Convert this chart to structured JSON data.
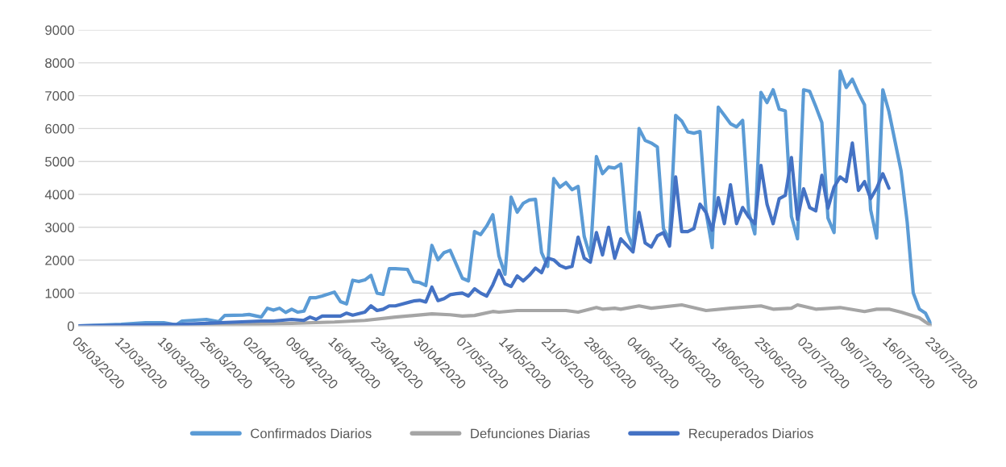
{
  "chart_data": {
    "type": "line",
    "xlim": [
      "2020-03-05",
      "2020-07-23"
    ],
    "xticks": [
      {
        "value": "2020-03-05",
        "label": "05/03/2020"
      },
      {
        "value": "2020-03-12",
        "label": "12/03/2020"
      },
      {
        "value": "2020-03-19",
        "label": "19/03/2020"
      },
      {
        "value": "2020-03-26",
        "label": "26/03/2020"
      },
      {
        "value": "2020-04-02",
        "label": "02/04/2020"
      },
      {
        "value": "2020-04-09",
        "label": "09/04/2020"
      },
      {
        "value": "2020-04-16",
        "label": "16/04/2020"
      },
      {
        "value": "2020-04-23",
        "label": "23/04/2020"
      },
      {
        "value": "2020-04-30",
        "label": "30/04/2020"
      },
      {
        "value": "2020-05-07",
        "label": "07/05/2020"
      },
      {
        "value": "2020-05-14",
        "label": "14/05/2020"
      },
      {
        "value": "2020-05-21",
        "label": "21/05/2020"
      },
      {
        "value": "2020-05-28",
        "label": "28/05/2020"
      },
      {
        "value": "2020-06-04",
        "label": "04/06/2020"
      },
      {
        "value": "2020-06-11",
        "label": "11/06/2020"
      },
      {
        "value": "2020-06-18",
        "label": "18/06/2020"
      },
      {
        "value": "2020-06-25",
        "label": "25/06/2020"
      },
      {
        "value": "2020-07-02",
        "label": "02/07/2020"
      },
      {
        "value": "2020-07-09",
        "label": "09/07/2020"
      },
      {
        "value": "2020-07-16",
        "label": "16/07/2020"
      },
      {
        "value": "2020-07-23",
        "label": "23/07/2020"
      }
    ],
    "ylim": [
      0,
      9000
    ],
    "yticks": [
      0,
      1000,
      2000,
      3000,
      4000,
      5000,
      6000,
      7000,
      8000,
      9000
    ],
    "grid": "y",
    "legend": "bottom",
    "marker": "none",
    "line_style": "solid",
    "series": [
      {
        "name": "Confirmados Diarios",
        "color": "#5b9bd5",
        "x": [
          "2020-03-05",
          "2020-03-12",
          "2020-03-16",
          "2020-03-19",
          "2020-03-21",
          "2020-03-22",
          "2020-03-26",
          "2020-03-28",
          "2020-03-29",
          "2020-04-01",
          "2020-04-02",
          "2020-04-04",
          "2020-04-05",
          "2020-04-06",
          "2020-04-07",
          "2020-04-08",
          "2020-04-09",
          "2020-04-10",
          "2020-04-11",
          "2020-04-12",
          "2020-04-13",
          "2020-04-14",
          "2020-04-16",
          "2020-04-17",
          "2020-04-18",
          "2020-04-19",
          "2020-04-20",
          "2020-04-21",
          "2020-04-22",
          "2020-04-23",
          "2020-04-24",
          "2020-04-25",
          "2020-04-26",
          "2020-04-28",
          "2020-04-29",
          "2020-04-30",
          "2020-05-01",
          "2020-05-02",
          "2020-05-03",
          "2020-05-04",
          "2020-05-05",
          "2020-05-07",
          "2020-05-08",
          "2020-05-09",
          "2020-05-10",
          "2020-05-11",
          "2020-05-12",
          "2020-05-13",
          "2020-05-14",
          "2020-05-15",
          "2020-05-16",
          "2020-05-17",
          "2020-05-18",
          "2020-05-19",
          "2020-05-20",
          "2020-05-21",
          "2020-05-22",
          "2020-05-23",
          "2020-05-24",
          "2020-05-25",
          "2020-05-26",
          "2020-05-27",
          "2020-05-28",
          "2020-05-29",
          "2020-05-30",
          "2020-05-31",
          "2020-06-01",
          "2020-06-02",
          "2020-06-03",
          "2020-06-04",
          "2020-06-05",
          "2020-06-06",
          "2020-06-07",
          "2020-06-08",
          "2020-06-09",
          "2020-06-10",
          "2020-06-11",
          "2020-06-12",
          "2020-06-13",
          "2020-06-14",
          "2020-06-15",
          "2020-06-16",
          "2020-06-17",
          "2020-06-18",
          "2020-06-19",
          "2020-06-20",
          "2020-06-21",
          "2020-06-22",
          "2020-06-23",
          "2020-06-24",
          "2020-06-25",
          "2020-06-26",
          "2020-06-27",
          "2020-06-28",
          "2020-06-29",
          "2020-06-30",
          "2020-07-01",
          "2020-07-02",
          "2020-07-03",
          "2020-07-04",
          "2020-07-05",
          "2020-07-06",
          "2020-07-07",
          "2020-07-08",
          "2020-07-09",
          "2020-07-10",
          "2020-07-11",
          "2020-07-12",
          "2020-07-13",
          "2020-07-14",
          "2020-07-15",
          "2020-07-16",
          "2020-07-18",
          "2020-07-19",
          "2020-07-20",
          "2020-07-21",
          "2020-07-22",
          "2020-07-23"
        ],
        "values": [
          0,
          50,
          100,
          100,
          30,
          150,
          200,
          130,
          320,
          330,
          350,
          270,
          540,
          480,
          540,
          410,
          510,
          420,
          450,
          860,
          860,
          910,
          1030,
          740,
          670,
          1390,
          1350,
          1400,
          1540,
          1000,
          960,
          1740,
          1740,
          1720,
          1350,
          1320,
          1230,
          2450,
          2010,
          2230,
          2300,
          1450,
          1370,
          2870,
          2780,
          3040,
          3380,
          2130,
          1570,
          3920,
          3460,
          3730,
          3830,
          3850,
          2230,
          1810,
          4480,
          4220,
          4360,
          4140,
          4240,
          2720,
          2100,
          5150,
          4630,
          4830,
          4800,
          4920,
          2870,
          2380,
          6000,
          5640,
          5560,
          5440,
          2960,
          2620,
          6400,
          6230,
          5900,
          5860,
          5910,
          3450,
          2380,
          6650,
          6400,
          6150,
          6050,
          6250,
          3450,
          2800,
          7100,
          6790,
          7180,
          6590,
          6540,
          3330,
          2650,
          7180,
          7130,
          6670,
          6180,
          3280,
          2840,
          7750,
          7250,
          7500,
          7080,
          6720,
          3530,
          2670,
          7180,
          6520,
          4710,
          3160,
          1000,
          510,
          390,
          20
        ]
      },
      {
        "name": "Defunciones Diarias",
        "color": "#a5a5a5",
        "x": [
          "2020-03-05",
          "2020-03-26",
          "2020-04-02",
          "2020-04-09",
          "2020-04-16",
          "2020-04-21",
          "2020-04-26",
          "2020-05-02",
          "2020-05-05",
          "2020-05-07",
          "2020-05-09",
          "2020-05-12",
          "2020-05-13",
          "2020-05-16",
          "2020-05-20",
          "2020-05-24",
          "2020-05-26",
          "2020-05-29",
          "2020-05-30",
          "2020-06-01",
          "2020-06-02",
          "2020-06-05",
          "2020-06-07",
          "2020-06-12",
          "2020-06-16",
          "2020-06-20",
          "2020-06-25",
          "2020-06-27",
          "2020-06-30",
          "2020-07-01",
          "2020-07-04",
          "2020-07-08",
          "2020-07-12",
          "2020-07-14",
          "2020-07-16",
          "2020-07-18",
          "2020-07-21",
          "2020-07-22",
          "2020-07-23"
        ],
        "values": [
          0,
          10,
          50,
          80,
          120,
          170,
          270,
          370,
          340,
          300,
          320,
          440,
          420,
          470,
          470,
          470,
          420,
          560,
          510,
          540,
          510,
          610,
          540,
          640,
          470,
          540,
          610,
          510,
          540,
          640,
          510,
          560,
          440,
          510,
          510,
          420,
          250,
          120,
          0
        ]
      },
      {
        "name": "Recuperados Diarios",
        "color": "#4472c4",
        "x": [
          "2020-03-05",
          "2020-03-22",
          "2020-03-31",
          "2020-04-04",
          "2020-04-06",
          "2020-04-09",
          "2020-04-11",
          "2020-04-12",
          "2020-04-13",
          "2020-04-14",
          "2020-04-17",
          "2020-04-18",
          "2020-04-19",
          "2020-04-21",
          "2020-04-22",
          "2020-04-23",
          "2020-04-24",
          "2020-04-25",
          "2020-04-26",
          "2020-04-27",
          "2020-04-29",
          "2020-04-30",
          "2020-05-01",
          "2020-05-02",
          "2020-05-03",
          "2020-05-04",
          "2020-05-05",
          "2020-05-06",
          "2020-05-07",
          "2020-05-08",
          "2020-05-09",
          "2020-05-10",
          "2020-05-11",
          "2020-05-12",
          "2020-05-13",
          "2020-05-14",
          "2020-05-15",
          "2020-05-16",
          "2020-05-17",
          "2020-05-18",
          "2020-05-19",
          "2020-05-20",
          "2020-05-21",
          "2020-05-22",
          "2020-05-23",
          "2020-05-24",
          "2020-05-25",
          "2020-05-26",
          "2020-05-27",
          "2020-05-28",
          "2020-05-29",
          "2020-05-30",
          "2020-05-31",
          "2020-06-01",
          "2020-06-02",
          "2020-06-03",
          "2020-06-04",
          "2020-06-05",
          "2020-06-06",
          "2020-06-07",
          "2020-06-08",
          "2020-06-09",
          "2020-06-10",
          "2020-06-11",
          "2020-06-12",
          "2020-06-13",
          "2020-06-14",
          "2020-06-15",
          "2020-06-16",
          "2020-06-17",
          "2020-06-18",
          "2020-06-19",
          "2020-06-20",
          "2020-06-21",
          "2020-06-22",
          "2020-06-23",
          "2020-06-24",
          "2020-06-25",
          "2020-06-26",
          "2020-06-27",
          "2020-06-28",
          "2020-06-29",
          "2020-06-30",
          "2020-07-01",
          "2020-07-02",
          "2020-07-03",
          "2020-07-04",
          "2020-07-05",
          "2020-07-06",
          "2020-07-07",
          "2020-07-08",
          "2020-07-09",
          "2020-07-10",
          "2020-07-11",
          "2020-07-12",
          "2020-07-13",
          "2020-07-14",
          "2020-07-15",
          "2020-07-16"
        ],
        "values": [
          0,
          50,
          120,
          150,
          150,
          200,
          170,
          270,
          200,
          300,
          300,
          390,
          330,
          420,
          610,
          470,
          510,
          610,
          610,
          660,
          760,
          780,
          730,
          1180,
          770,
          830,
          950,
          980,
          1000,
          910,
          1130,
          1000,
          910,
          1250,
          1690,
          1280,
          1200,
          1520,
          1370,
          1540,
          1760,
          1620,
          2060,
          2010,
          1840,
          1760,
          1810,
          2700,
          2060,
          1940,
          2840,
          2160,
          3000,
          2060,
          2650,
          2450,
          2250,
          3450,
          2520,
          2400,
          2740,
          2840,
          2430,
          4530,
          2870,
          2870,
          2960,
          3700,
          3450,
          2910,
          3900,
          3110,
          4290,
          3110,
          3600,
          3310,
          3110,
          4880,
          3700,
          3110,
          3870,
          3970,
          5120,
          3240,
          4170,
          3600,
          3500,
          4580,
          3580,
          4220,
          4530,
          4390,
          5560,
          4120,
          4390,
          3870,
          4190,
          4630,
          4190
        ]
      }
    ]
  }
}
